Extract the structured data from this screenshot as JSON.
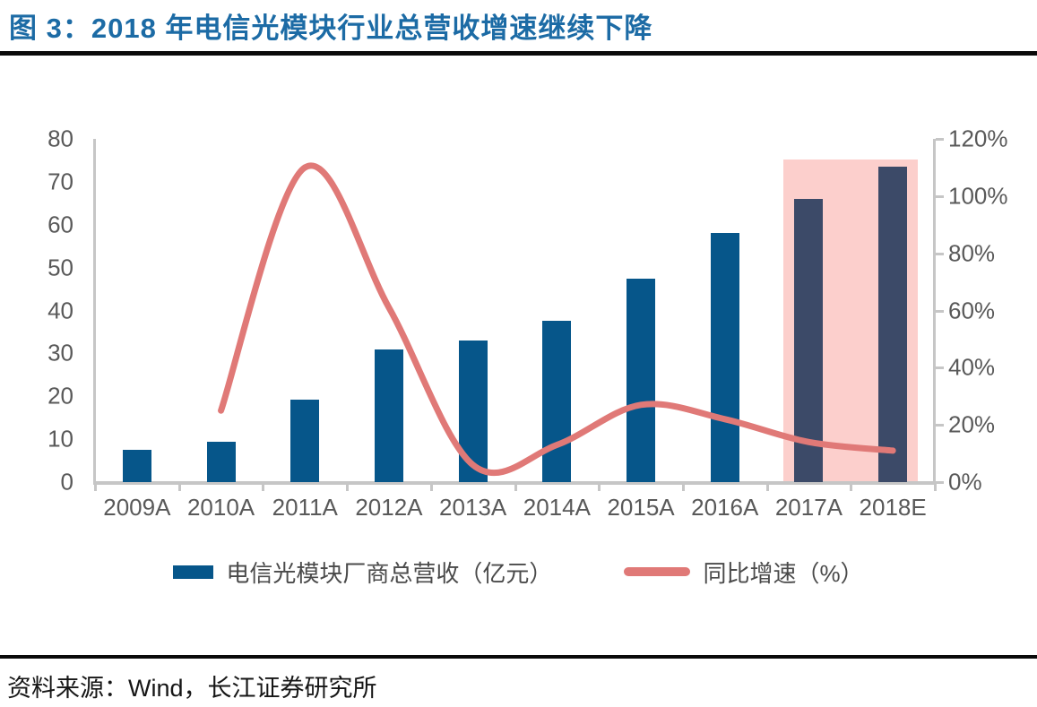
{
  "figure": {
    "title": "图 3：2018 年电信光模块行业总营收增速继续下降",
    "source": "资料来源：Wind，长江证券研究所"
  },
  "colors": {
    "title_text": "#1c6ba5",
    "divider_rule": "#0a0a0a",
    "bar": "#06568a",
    "bar_highlight": "#3c4a68",
    "highlight_band": "#fccfcc",
    "growth_line": "#e07977",
    "axis_line": "#c6c6c6",
    "tick_label": "#595959",
    "legend_text": "#4a4a4a"
  },
  "chart_data": {
    "type": "combo",
    "title": "2018 年电信光模块行业总营收增速继续下降",
    "categories": [
      "2009A",
      "2010A",
      "2011A",
      "2012A",
      "2013A",
      "2014A",
      "2015A",
      "2016A",
      "2017A",
      "2018E"
    ],
    "series": [
      {
        "name": "电信光模块厂商总营收（亿元）",
        "type": "bar",
        "axis": "left",
        "values": [
          7.5,
          9.5,
          19.3,
          31,
          33,
          37.5,
          47.5,
          58,
          66,
          73.5
        ]
      },
      {
        "name": "同比增速（%）",
        "type": "line",
        "axis": "right",
        "values": [
          null,
          25,
          110,
          61,
          6,
          13,
          27,
          22,
          14,
          11
        ]
      }
    ],
    "left_axis": {
      "min": 0,
      "max": 80,
      "step": 10,
      "tick_labels": [
        "0",
        "10",
        "20",
        "30",
        "40",
        "50",
        "60",
        "70",
        "80"
      ]
    },
    "right_axis": {
      "min": 0,
      "max": 120,
      "step": 20,
      "tick_labels": [
        "0%",
        "20%",
        "40%",
        "60%",
        "80%",
        "100%",
        "120%"
      ]
    },
    "highlight_categories": [
      "2017A",
      "2018E"
    ],
    "grid": false,
    "legend_position": "bottom"
  }
}
